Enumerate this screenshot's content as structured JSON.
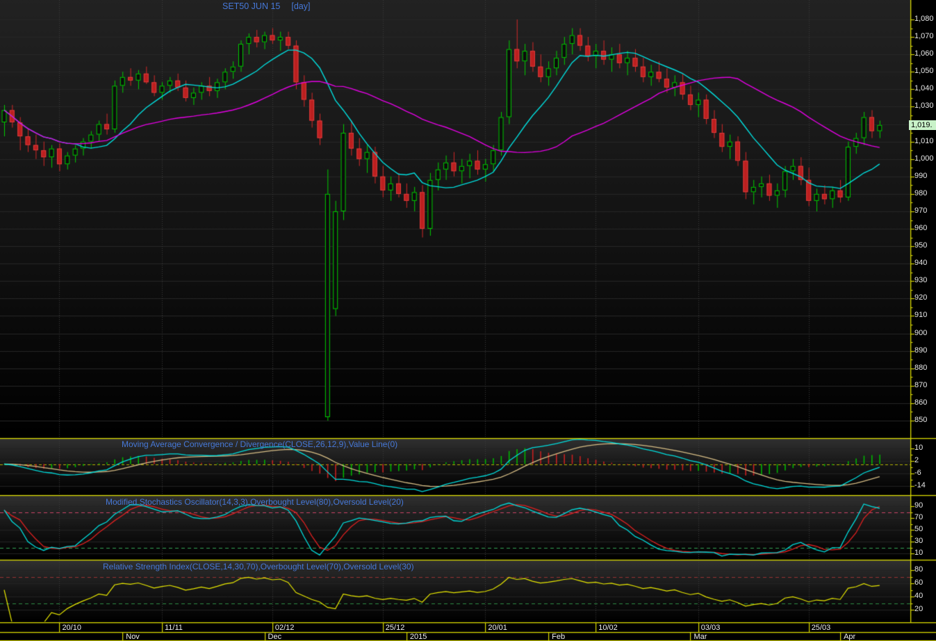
{
  "title": {
    "symbol": "SET50 JUN 15",
    "timeframe": "[day]"
  },
  "price_badge": "1,019.",
  "colors": {
    "background": "#000000",
    "panel_border": "#d8d800",
    "axis_line": "#d8d800",
    "title_blue": "#4678d8",
    "bull_green": "#00cf00",
    "bear_red_fill": "#bb1f1f",
    "bear_red_stroke": "#dd3c3c",
    "ma_fast_cyan": "#00dede",
    "ma_slow_magenta": "#e400e4",
    "macd_signal_tan": "#d6bd85",
    "macd_zero_yellow": "#b4b400",
    "stoch_k_cyan": "#00dede",
    "stoch_d_red": "#e02020",
    "stoch_overbought": "#cc4466",
    "stoch_oversold": "#33a355",
    "rsi_yellow": "#e8e800",
    "rsi_overbought": "#993333",
    "rsi_oversold": "#2e8b44",
    "badge_bg": "#c9f2c9",
    "grid": "#262626",
    "vgrid": "#3c3c3c",
    "label_white": "#e8e8e8"
  },
  "panels": {
    "macd": {
      "label": "Moving Average Convergence / Divergence(CLOSE,26,12,9),Value Line(0)",
      "tick_labels": [
        "10",
        "2",
        "-6",
        "-14"
      ],
      "tick_values": [
        10,
        2,
        -6,
        -14
      ],
      "zero_line": 0
    },
    "stoch": {
      "label": "Modified Stochastics Oscillator(14,3,3),Overbought Level(80),Oversold Level(20)",
      "tick_labels": [
        "90",
        "70",
        "50",
        "30",
        "10"
      ],
      "tick_values": [
        90,
        70,
        50,
        30,
        10
      ],
      "overbought": 80,
      "oversold": 20
    },
    "rsi": {
      "label": "Relative Strength Index(CLOSE,14,30,70),Overbought Level(70),Oversold Level(30)",
      "tick_labels": [
        "80",
        "60",
        "40",
        "20"
      ],
      "tick_values": [
        80,
        60,
        40,
        20
      ],
      "overbought": 70,
      "oversold": 30
    }
  },
  "price_axis": {
    "tick_labels": [
      "1,080",
      "1,070",
      "1,060",
      "1,050",
      "1,040",
      "1,030",
      "1,020",
      "1,010",
      "1,000",
      "990",
      "980",
      "970",
      "960",
      "950",
      "940",
      "930",
      "920",
      "910",
      "900",
      "890",
      "880",
      "870",
      "860",
      "850"
    ],
    "tick_values": [
      1080,
      1070,
      1060,
      1050,
      1040,
      1030,
      1020,
      1010,
      1000,
      990,
      980,
      970,
      960,
      950,
      940,
      930,
      920,
      910,
      900,
      890,
      880,
      870,
      860,
      850
    ],
    "minor_step": 5
  },
  "time_axis": {
    "date_ticks": [
      {
        "label": "20/10",
        "index": 7
      },
      {
        "label": "11/11",
        "index": 20
      },
      {
        "label": "02/12",
        "index": 34
      },
      {
        "label": "25/12",
        "index": 48
      },
      {
        "label": "20/01",
        "index": 61
      },
      {
        "label": "10/02",
        "index": 75
      },
      {
        "label": "03/03",
        "index": 88
      },
      {
        "label": "25/03",
        "index": 102
      }
    ],
    "month_ticks": [
      {
        "label": "Nov",
        "index": 15
      },
      {
        "label": "Dec",
        "index": 33
      },
      {
        "label": "2015",
        "index": 51
      },
      {
        "label": "Feb",
        "index": 69
      },
      {
        "label": "Mar",
        "index": 87
      },
      {
        "label": "Apr",
        "index": 106
      }
    ]
  },
  "chart_data": {
    "type": "candlestick",
    "symbol": "SET50 JUN 15",
    "interval": "day",
    "ylim": [
      850,
      1080
    ],
    "last_price_label": "1,019.",
    "overlays": [
      {
        "name": "fast moving average",
        "type": "sma",
        "period": 10,
        "color": "#00dede"
      },
      {
        "name": "slow moving average",
        "type": "sma",
        "period": 30,
        "color": "#e400e4"
      }
    ],
    "indicators": {
      "macd": {
        "slow": 26,
        "fast": 12,
        "signal": 9,
        "value_line": 0,
        "ylim": [
          -19.8,
          15.8
        ]
      },
      "stoch": {
        "k": 14,
        "smooth": 3,
        "d": 3,
        "overbought": 80,
        "oversold": 20,
        "ylim": [
          -1,
          107
        ]
      },
      "rsi": {
        "period": 14,
        "overbought": 70,
        "oversold": 30,
        "ylim": [
          1,
          94
        ]
      }
    },
    "candles_ohlc": [
      [
        1021,
        1031,
        1013,
        1028
      ],
      [
        1028,
        1031,
        1018,
        1021
      ],
      [
        1021,
        1024,
        1005,
        1013
      ],
      [
        1013,
        1017,
        1004,
        1008
      ],
      [
        1008,
        1014,
        1000,
        1005
      ],
      [
        1005,
        1010,
        996,
        1001
      ],
      [
        1001,
        1008,
        995,
        1006
      ],
      [
        1006,
        1009,
        993,
        997
      ],
      [
        997,
        1004,
        994,
        1002
      ],
      [
        1002,
        1008,
        998,
        1006
      ],
      [
        1006,
        1012,
        1002,
        1010
      ],
      [
        1010,
        1016,
        1006,
        1014
      ],
      [
        1014,
        1022,
        1010,
        1020
      ],
      [
        1020,
        1026,
        1014,
        1017
      ],
      [
        1017,
        1045,
        1015,
        1042
      ],
      [
        1042,
        1050,
        1038,
        1047
      ],
      [
        1047,
        1052,
        1042,
        1045
      ],
      [
        1045,
        1051,
        1040,
        1049
      ],
      [
        1049,
        1053,
        1043,
        1044
      ],
      [
        1044,
        1048,
        1036,
        1038
      ],
      [
        1038,
        1044,
        1034,
        1042
      ],
      [
        1042,
        1047,
        1038,
        1045
      ],
      [
        1045,
        1049,
        1039,
        1041
      ],
      [
        1041,
        1045,
        1033,
        1035
      ],
      [
        1035,
        1041,
        1031,
        1038
      ],
      [
        1038,
        1044,
        1034,
        1042
      ],
      [
        1042,
        1047,
        1036,
        1039
      ],
      [
        1039,
        1046,
        1035,
        1044
      ],
      [
        1044,
        1052,
        1040,
        1050
      ],
      [
        1050,
        1056,
        1046,
        1053
      ],
      [
        1053,
        1068,
        1050,
        1066
      ],
      [
        1066,
        1072,
        1060,
        1070
      ],
      [
        1070,
        1074,
        1064,
        1067
      ],
      [
        1067,
        1073,
        1063,
        1071
      ],
      [
        1071,
        1075,
        1066,
        1068
      ],
      [
        1068,
        1073,
        1062,
        1070
      ],
      [
        1070,
        1073,
        1063,
        1065
      ],
      [
        1065,
        1068,
        1040,
        1044
      ],
      [
        1044,
        1048,
        1030,
        1034
      ],
      [
        1034,
        1038,
        1018,
        1022
      ],
      [
        1022,
        1026,
        1008,
        1012
      ],
      [
        852,
        994,
        850,
        980
      ],
      [
        914,
        976,
        910,
        970
      ],
      [
        970,
        1020,
        965,
        1015
      ],
      [
        1015,
        1022,
        1002,
        1006
      ],
      [
        1006,
        1012,
        996,
        1000
      ],
      [
        1000,
        1008,
        992,
        1004
      ],
      [
        1004,
        1007,
        986,
        990
      ],
      [
        990,
        996,
        978,
        982
      ],
      [
        982,
        990,
        976,
        986
      ],
      [
        986,
        992,
        978,
        980
      ],
      [
        980,
        986,
        972,
        976
      ],
      [
        976,
        984,
        970,
        981
      ],
      [
        981,
        985,
        955,
        960
      ],
      [
        960,
        992,
        956,
        988
      ],
      [
        988,
        998,
        982,
        994
      ],
      [
        994,
        1002,
        988,
        998
      ],
      [
        998,
        1004,
        990,
        993
      ],
      [
        993,
        1000,
        986,
        996
      ],
      [
        996,
        1003,
        989,
        999
      ],
      [
        999,
        1005,
        991,
        994
      ],
      [
        994,
        1000,
        987,
        997
      ],
      [
        997,
        1008,
        993,
        1005
      ],
      [
        1005,
        1027,
        1002,
        1024
      ],
      [
        1024,
        1068,
        1020,
        1063
      ],
      [
        1063,
        1080,
        1052,
        1056
      ],
      [
        1056,
        1066,
        1048,
        1062
      ],
      [
        1062,
        1067,
        1050,
        1053
      ],
      [
        1053,
        1060,
        1044,
        1047
      ],
      [
        1047,
        1056,
        1042,
        1052
      ],
      [
        1052,
        1062,
        1048,
        1058
      ],
      [
        1058,
        1070,
        1054,
        1066
      ],
      [
        1066,
        1075,
        1060,
        1071
      ],
      [
        1071,
        1075,
        1062,
        1065
      ],
      [
        1065,
        1070,
        1056,
        1059
      ],
      [
        1059,
        1066,
        1052,
        1062
      ],
      [
        1062,
        1068,
        1054,
        1057
      ],
      [
        1057,
        1064,
        1050,
        1060
      ],
      [
        1060,
        1066,
        1052,
        1055
      ],
      [
        1055,
        1062,
        1048,
        1058
      ],
      [
        1058,
        1063,
        1050,
        1053
      ],
      [
        1053,
        1058,
        1044,
        1047
      ],
      [
        1047,
        1054,
        1042,
        1050
      ],
      [
        1050,
        1056,
        1044,
        1046
      ],
      [
        1046,
        1052,
        1038,
        1041
      ],
      [
        1041,
        1048,
        1036,
        1044
      ],
      [
        1044,
        1049,
        1034,
        1037
      ],
      [
        1037,
        1042,
        1028,
        1031
      ],
      [
        1031,
        1038,
        1024,
        1034
      ],
      [
        1034,
        1037,
        1020,
        1023
      ],
      [
        1023,
        1028,
        1012,
        1015
      ],
      [
        1015,
        1020,
        1004,
        1007
      ],
      [
        1007,
        1014,
        1000,
        1010
      ],
      [
        1010,
        1013,
        996,
        999
      ],
      [
        999,
        1004,
        977,
        981
      ],
      [
        981,
        988,
        974,
        984
      ],
      [
        984,
        990,
        978,
        986
      ],
      [
        986,
        991,
        976,
        979
      ],
      [
        979,
        986,
        972,
        982
      ],
      [
        982,
        996,
        978,
        993
      ],
      [
        993,
        1000,
        988,
        996
      ],
      [
        996,
        1001,
        985,
        988
      ],
      [
        988,
        995,
        973,
        976
      ],
      [
        976,
        983,
        970,
        980
      ],
      [
        980,
        985,
        974,
        977
      ],
      [
        977,
        984,
        972,
        982
      ],
      [
        982,
        988,
        975,
        978
      ],
      [
        978,
        1010,
        976,
        1007
      ],
      [
        1007,
        1015,
        1003,
        1012
      ],
      [
        1012,
        1027,
        1008,
        1024
      ],
      [
        1024,
        1028,
        1012,
        1016
      ],
      [
        1016,
        1022,
        1012,
        1019.5
      ]
    ]
  }
}
